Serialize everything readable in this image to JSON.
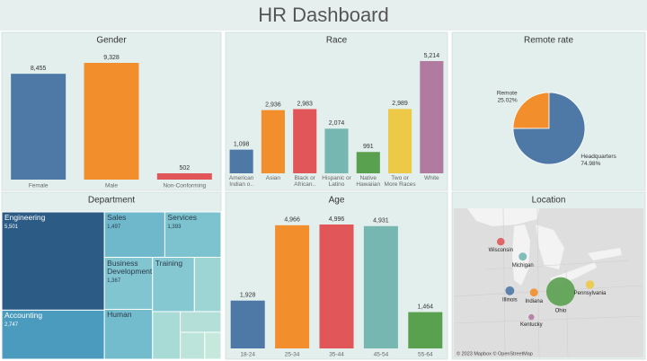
{
  "title": "HR Dashboard",
  "chart_data": [
    {
      "type": "bar",
      "title": "Gender",
      "categories": [
        "Female",
        "Male",
        "Non-Conforming"
      ],
      "values": [
        8455,
        9328,
        502
      ],
      "value_labels": [
        "8,455",
        "9,328",
        "502"
      ],
      "colors": [
        "#4e79a7",
        "#f28e2b",
        "#e15759"
      ]
    },
    {
      "type": "bar",
      "title": "Race",
      "categories": [
        "American Indian o..",
        "Asian",
        "Black or African..",
        "Hispanic or Latino",
        "Native Hawaiian",
        "Two or More Races",
        "White"
      ],
      "values": [
        1098,
        2936,
        2983,
        2074,
        991,
        2989,
        5214
      ],
      "value_labels": [
        "1,098",
        "2,936",
        "2,983",
        "2,074",
        "991",
        "2,989",
        "5,214"
      ],
      "colors": [
        "#4e79a7",
        "#f28e2b",
        "#e15759",
        "#76b7b2",
        "#59a14f",
        "#edc948",
        "#b07aa1"
      ]
    },
    {
      "type": "pie",
      "title": "Remote rate",
      "categories": [
        "Remote",
        "Headquarters"
      ],
      "values": [
        25.02,
        74.98
      ],
      "value_labels": [
        "25.02%",
        "74.98%"
      ],
      "colors": [
        "#f28e2b",
        "#4e79a7"
      ]
    },
    {
      "type": "treemap",
      "title": "Department",
      "categories": [
        "Engineering",
        "Accounting",
        "Sales",
        "Services",
        "Business Development",
        "Human",
        "Training",
        null,
        null,
        null,
        null,
        null
      ],
      "values": [
        5501,
        2747,
        1497,
        1393,
        1367,
        1310,
        1240,
        790,
        720,
        460,
        360,
        240
      ],
      "value_labels": [
        "5,501",
        "2,747",
        "1,497",
        "1,393",
        "1,367",
        null,
        null,
        null,
        null,
        null,
        null,
        null
      ],
      "colors": [
        "#2c5b86",
        "#4a9bbd",
        "#6fb8cc",
        "#7cc2cf",
        "#80c5d0",
        "#73bccd",
        "#85c8d1",
        "#9dd5d4",
        "#a8dad6",
        "#b3dfd8",
        "#bde4da",
        "#c7e8dc"
      ]
    },
    {
      "type": "bar",
      "title": "Age",
      "categories": [
        "18-24",
        "25-34",
        "35-44",
        "45-54",
        "55-64"
      ],
      "values": [
        1928,
        4966,
        4996,
        4931,
        1464
      ],
      "value_labels": [
        "1,928",
        "4,966",
        "4,996",
        "4,931",
        "1,464"
      ],
      "colors": [
        "#4e79a7",
        "#f28e2b",
        "#e15759",
        "#76b7b2",
        "#59a14f"
      ]
    },
    {
      "type": "map",
      "title": "Location",
      "categories": [
        "Wisconsin",
        "Michigan",
        "Illinois",
        "Indiana",
        "Ohio",
        "Pennsylvania",
        "Kentucky"
      ],
      "lon": [
        -90.25,
        -87.7,
        -89.2,
        -86.4,
        -83.3,
        -79.9,
        -86.7
      ],
      "lat": [
        45.6,
        43.9,
        40.0,
        39.8,
        39.9,
        40.7,
        37.0
      ],
      "sizes": [
        900,
        1000,
        1200,
        1000,
        12700,
        1100,
        500
      ],
      "colors": [
        "#e15759",
        "#76b7b2",
        "#4e79a7",
        "#f28e2b",
        "#59a14f",
        "#edc948",
        "#b07aa1"
      ],
      "xlim": [
        -95.7,
        -73.7
      ],
      "ylim": [
        32.4,
        49.4
      ],
      "attribution": "© 2023 Mapbox © OpenStreetMap"
    }
  ]
}
